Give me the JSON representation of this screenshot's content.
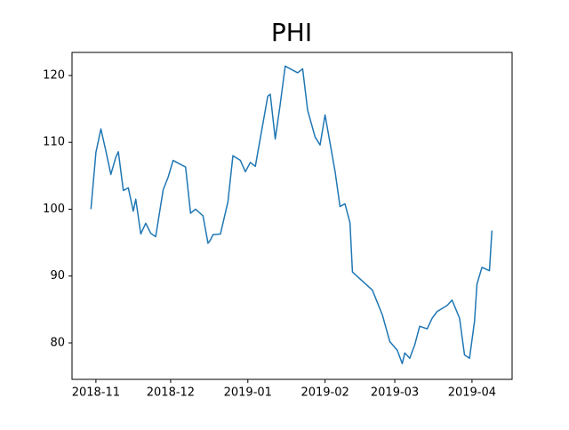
{
  "chart_data": {
    "type": "line",
    "title": "PHI",
    "x": [
      -2,
      0,
      2,
      4,
      6,
      8,
      9,
      11,
      13,
      15,
      16,
      18,
      20,
      22,
      24,
      27,
      29,
      31,
      36,
      38,
      40,
      43,
      45,
      46,
      47,
      50,
      53,
      55,
      58,
      60,
      62,
      64,
      69,
      70,
      72,
      74,
      76,
      81,
      83,
      85,
      88,
      90,
      92,
      96,
      98,
      100,
      102,
      103,
      111,
      115,
      118,
      121,
      123,
      124,
      126,
      128,
      130,
      133,
      135,
      137,
      141,
      143,
      146,
      148,
      150,
      152,
      153,
      155,
      158,
      159
    ],
    "series": [
      {
        "color": "#1f77b4",
        "values": [
          100,
          108.5,
          112,
          108.7,
          105.2,
          107.8,
          108.6,
          102.8,
          103.2,
          99.7,
          101.5,
          96.3,
          97.9,
          96.4,
          95.9,
          102.9,
          104.8,
          107.3,
          106.3,
          99.4,
          100.0,
          99.0,
          94.9,
          95.4,
          96.2,
          96.3,
          101.1,
          108.0,
          107.3,
          105.6,
          107.0,
          106.4,
          116.9,
          117.2,
          110.5,
          115.7,
          121.4,
          120.4,
          121.0,
          114.8,
          110.8,
          109.6,
          114.1,
          105.7,
          100.4,
          100.8,
          98.0,
          90.6,
          87.9,
          84.2,
          80.2,
          78.9,
          76.9,
          78.5,
          77.7,
          79.7,
          82.5,
          82.1,
          83.7,
          84.7,
          85.6,
          86.4,
          83.7,
          78.2,
          77.7,
          83.2,
          88.8,
          91.3,
          90.8,
          96.8
        ]
      }
    ],
    "xlim": [
      -9.6,
      167.1
    ],
    "xticks": [
      {
        "value": 0,
        "label": "2018-11"
      },
      {
        "value": 30,
        "label": "2018-12"
      },
      {
        "value": 61,
        "label": "2019-01"
      },
      {
        "value": 92,
        "label": "2019-02"
      },
      {
        "value": 120,
        "label": "2019-03"
      },
      {
        "value": 151,
        "label": "2019-04"
      }
    ],
    "ylim": [
      74.55,
      123.45
    ],
    "yticks": [
      80,
      90,
      100,
      110,
      120
    ]
  }
}
